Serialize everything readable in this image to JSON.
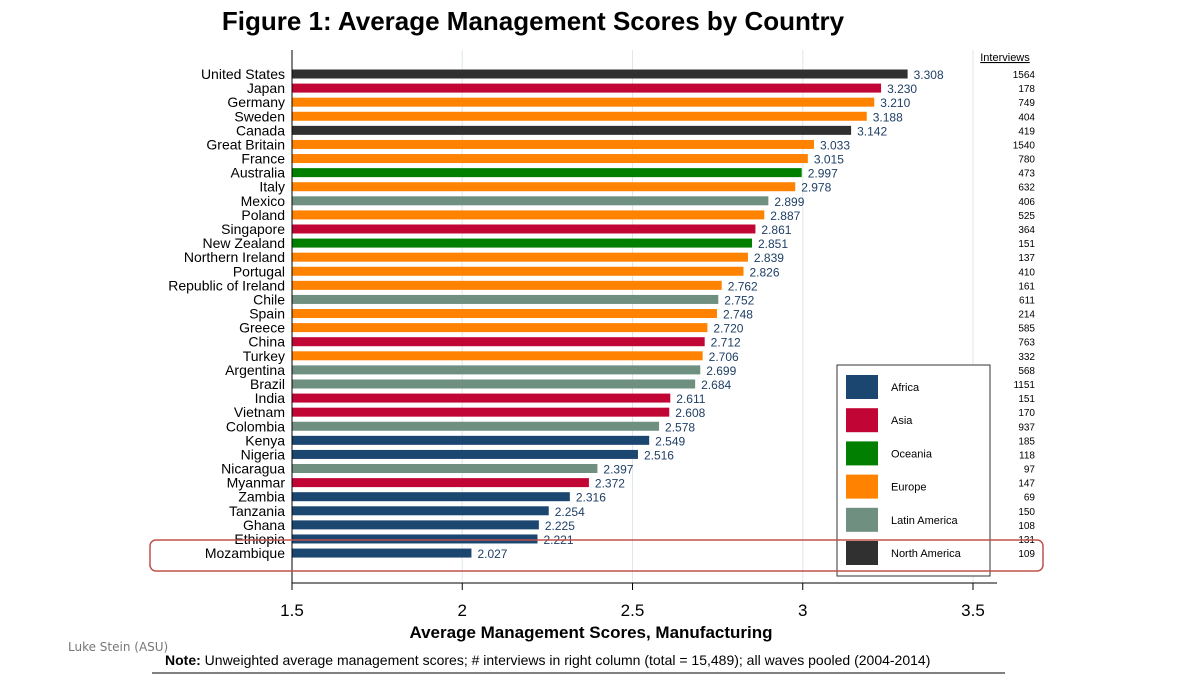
{
  "chart_data": {
    "type": "bar",
    "orientation": "horizontal",
    "title": "Figure 1: Average Management Scores by Country",
    "xlabel": "Average Management Scores, Manufacturing",
    "xlim": [
      1.5,
      3.5
    ],
    "xticks": [
      1.5,
      2,
      2.5,
      3,
      3.5
    ],
    "xtick_labels": [
      "1.5",
      "2",
      "2.5",
      "3",
      "3.5"
    ],
    "grid": "vertical",
    "legend_placement": "bottom-right",
    "interviews_header": "Interviews",
    "regions": [
      {
        "name": "Africa",
        "color": "#1b4670"
      },
      {
        "name": "Asia",
        "color": "#c10534"
      },
      {
        "name": "Oceania",
        "color": "#007f00"
      },
      {
        "name": "Europe",
        "color": "#ff8200"
      },
      {
        "name": "Latin America",
        "color": "#6f8f80"
      },
      {
        "name": "North America",
        "color": "#303030"
      }
    ],
    "countries": [
      {
        "name": "United States",
        "value": 3.308,
        "label": "3.308",
        "region": "North America",
        "interviews": "1564"
      },
      {
        "name": "Japan",
        "value": 3.23,
        "label": "3.230",
        "region": "Asia",
        "interviews": "178"
      },
      {
        "name": "Germany",
        "value": 3.21,
        "label": "3.210",
        "region": "Europe",
        "interviews": "749"
      },
      {
        "name": "Sweden",
        "value": 3.188,
        "label": "3.188",
        "region": "Europe",
        "interviews": "404"
      },
      {
        "name": "Canada",
        "value": 3.142,
        "label": "3.142",
        "region": "North America",
        "interviews": "419"
      },
      {
        "name": "Great Britain",
        "value": 3.033,
        "label": "3.033",
        "region": "Europe",
        "interviews": "1540"
      },
      {
        "name": "France",
        "value": 3.015,
        "label": "3.015",
        "region": "Europe",
        "interviews": "780"
      },
      {
        "name": "Australia",
        "value": 2.997,
        "label": "2.997",
        "region": "Oceania",
        "interviews": "473"
      },
      {
        "name": "Italy",
        "value": 2.978,
        "label": "2.978",
        "region": "Europe",
        "interviews": "632"
      },
      {
        "name": "Mexico",
        "value": 2.899,
        "label": "2.899",
        "region": "Latin America",
        "interviews": "406"
      },
      {
        "name": "Poland",
        "value": 2.887,
        "label": "2.887",
        "region": "Europe",
        "interviews": "525"
      },
      {
        "name": "Singapore",
        "value": 2.861,
        "label": "2.861",
        "region": "Asia",
        "interviews": "364"
      },
      {
        "name": "New Zealand",
        "value": 2.851,
        "label": "2.851",
        "region": "Oceania",
        "interviews": "151"
      },
      {
        "name": "Northern Ireland",
        "value": 2.839,
        "label": "2.839",
        "region": "Europe",
        "interviews": "137"
      },
      {
        "name": "Portugal",
        "value": 2.826,
        "label": "2.826",
        "region": "Europe",
        "interviews": "410"
      },
      {
        "name": "Republic of Ireland",
        "value": 2.762,
        "label": "2.762",
        "region": "Europe",
        "interviews": "161"
      },
      {
        "name": "Chile",
        "value": 2.752,
        "label": "2.752",
        "region": "Latin America",
        "interviews": "611"
      },
      {
        "name": "Spain",
        "value": 2.748,
        "label": "2.748",
        "region": "Europe",
        "interviews": "214"
      },
      {
        "name": "Greece",
        "value": 2.72,
        "label": "2.720",
        "region": "Europe",
        "interviews": "585"
      },
      {
        "name": "China",
        "value": 2.712,
        "label": "2.712",
        "region": "Asia",
        "interviews": "763"
      },
      {
        "name": "Turkey",
        "value": 2.706,
        "label": "2.706",
        "region": "Europe",
        "interviews": "332"
      },
      {
        "name": "Argentina",
        "value": 2.699,
        "label": "2.699",
        "region": "Latin America",
        "interviews": "568"
      },
      {
        "name": "Brazil",
        "value": 2.684,
        "label": "2.684",
        "region": "Latin America",
        "interviews": "1151"
      },
      {
        "name": "India",
        "value": 2.611,
        "label": "2.611",
        "region": "Asia",
        "interviews": "151"
      },
      {
        "name": "Vietnam",
        "value": 2.608,
        "label": "2.608",
        "region": "Asia",
        "interviews": "170"
      },
      {
        "name": "Colombia",
        "value": 2.578,
        "label": "2.578",
        "region": "Latin America",
        "interviews": "937"
      },
      {
        "name": "Kenya",
        "value": 2.549,
        "label": "2.549",
        "region": "Africa",
        "interviews": "185"
      },
      {
        "name": "Nigeria",
        "value": 2.516,
        "label": "2.516",
        "region": "Africa",
        "interviews": "118"
      },
      {
        "name": "Nicaragua",
        "value": 2.397,
        "label": "2.397",
        "region": "Latin America",
        "interviews": "97"
      },
      {
        "name": "Myanmar",
        "value": 2.372,
        "label": "2.372",
        "region": "Asia",
        "interviews": "147"
      },
      {
        "name": "Zambia",
        "value": 2.316,
        "label": "2.316",
        "region": "Africa",
        "interviews": "69"
      },
      {
        "name": "Tanzania",
        "value": 2.254,
        "label": "2.254",
        "region": "Africa",
        "interviews": "150"
      },
      {
        "name": "Ghana",
        "value": 2.225,
        "label": "2.225",
        "region": "Africa",
        "interviews": "108"
      },
      {
        "name": "Ethiopia",
        "value": 2.221,
        "label": "2.221",
        "region": "Africa",
        "interviews": "131"
      },
      {
        "name": "Mozambique",
        "value": 2.027,
        "label": "2.027",
        "region": "Africa",
        "interviews": "109",
        "highlighted": true
      }
    ],
    "note_label": "Note:",
    "note_text": " Unweighted average management scores; # interviews in right column (total = 15,489); all waves pooled (2004-2014)"
  },
  "footer": {
    "credit": "Luke Stein (ASU)"
  },
  "colors": {
    "value_label": "#1f3f66",
    "highlight": "#c0504d",
    "grid": "#dde8ee"
  }
}
